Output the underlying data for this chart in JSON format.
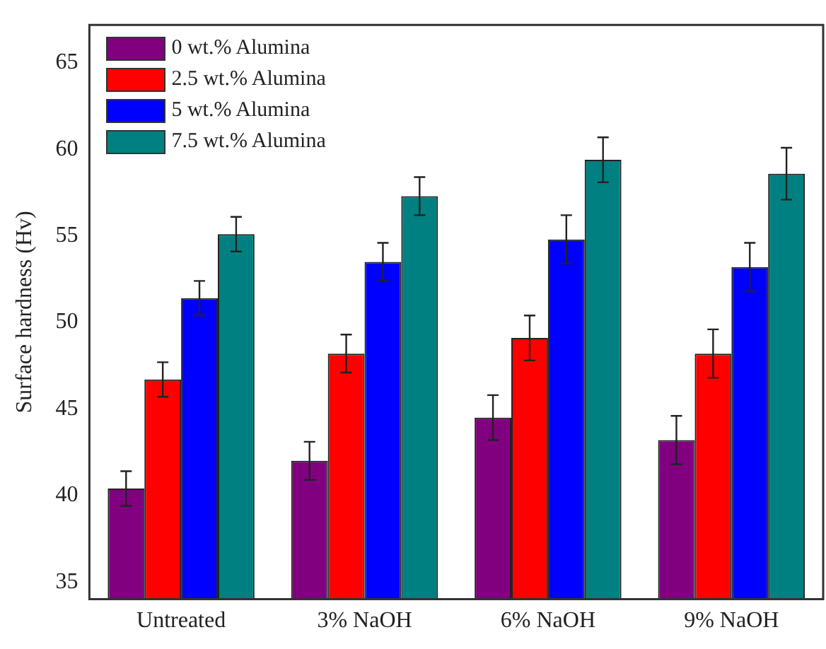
{
  "chart_data": {
    "type": "bar",
    "ylabel": "Surface hardness (Hv)",
    "categories": [
      "Untreated",
      "3% NaOH",
      "6% NaOH",
      "9% NaOH"
    ],
    "series": [
      {
        "name": "0 wt.% Alumina",
        "color": "#800080",
        "values": [
          40.4,
          42.0,
          44.5,
          43.2
        ],
        "errors": [
          1.0,
          1.1,
          1.3,
          1.4
        ]
      },
      {
        "name": "2.5 wt.% Alumina",
        "color": "#ff0000",
        "values": [
          46.7,
          48.2,
          49.1,
          48.2
        ],
        "errors": [
          1.0,
          1.1,
          1.3,
          1.4
        ]
      },
      {
        "name": "5 wt.% Alumina",
        "color": "#0000ff",
        "values": [
          51.4,
          53.5,
          54.8,
          53.2
        ],
        "errors": [
          1.0,
          1.1,
          1.4,
          1.4
        ]
      },
      {
        "name": "7.5 wt.% Alumina",
        "color": "#008080",
        "values": [
          55.1,
          57.3,
          59.4,
          58.6
        ],
        "errors": [
          1.0,
          1.1,
          1.3,
          1.5
        ]
      }
    ],
    "ylim": [
      34,
      67.2
    ],
    "yticks": [
      35,
      40,
      45,
      50,
      55,
      60,
      65
    ],
    "grid": false,
    "legend": "top left"
  }
}
